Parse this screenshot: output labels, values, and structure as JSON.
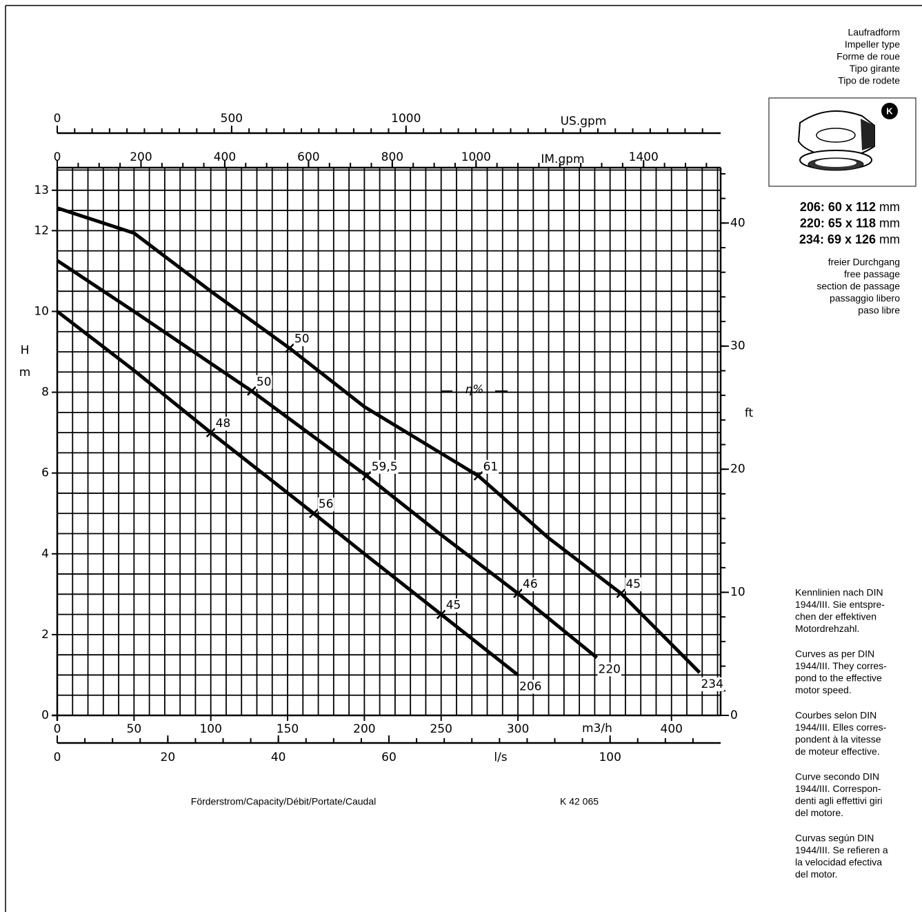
{
  "header": {
    "impeller_type": [
      "Laufradform",
      "Impeller type",
      "Forme de roue",
      "Tipo girante",
      "Tipo de rodete"
    ],
    "impeller_badge": "K",
    "dimensions": [
      {
        "label": "206: 60 x 112",
        "unit": "mm"
      },
      {
        "label": "220: 65 x 118",
        "unit": "mm"
      },
      {
        "label": "234: 69 x 126",
        "unit": "mm"
      }
    ],
    "free_passage": [
      "freier Durchgang",
      "free passage",
      "section de passage",
      "passaggio libero",
      "paso libre"
    ]
  },
  "notes": [
    [
      "Kennlinien nach DIN",
      "1944/III. Sie entspre-",
      "chen der effektiven",
      "Motordrehzahl."
    ],
    [
      "Curves as per DIN",
      "1944/III. They corres-",
      "pond to the effective",
      "motor speed."
    ],
    [
      "Courbes selon DIN",
      "1944/III. Elles corres-",
      "pondent à la vitesse",
      "de moteur effective."
    ],
    [
      "Curve secondo DIN",
      "1944/III. Correspon-",
      "denti agli effettivi giri",
      "del motore."
    ],
    [
      "Curvas según DIN",
      "1944/III. Se refieren a",
      "la velocidad efectiva",
      "del motor."
    ]
  ],
  "footer": {
    "caption": "Förderstrom/Capacity/Débit/Portate/Caudal",
    "code": "K 42 065"
  },
  "chart_data": {
    "type": "line",
    "ylabel": "H",
    "ylabel_unit": "m",
    "xlabel": "m3/h",
    "annotation": "η%",
    "xlim": [
      0,
      432
    ],
    "xticks": [
      0,
      50,
      100,
      150,
      200,
      250,
      300,
      400
    ],
    "ylim": [
      0,
      13.56
    ],
    "yticks": [
      0,
      2,
      4,
      6,
      8,
      10,
      12,
      13
    ],
    "xgrid": [
      0,
      10,
      20,
      30,
      40,
      50,
      60,
      70,
      80,
      90,
      100,
      110,
      120,
      130,
      140,
      150,
      160,
      170,
      180,
      190,
      200,
      210,
      220,
      230,
      240,
      250,
      260,
      270,
      280,
      290,
      300,
      310,
      320,
      330,
      340,
      350,
      360,
      370,
      380,
      390,
      400,
      410,
      420,
      430
    ],
    "ygrid": [
      0,
      0.5,
      1,
      1.5,
      2,
      2.5,
      3,
      3.5,
      4,
      4.5,
      5,
      5.5,
      6,
      6.5,
      7,
      7.5,
      8,
      8.5,
      9,
      9.5,
      10,
      10.5,
      11,
      11.5,
      12,
      12.5,
      13,
      13.5
    ],
    "y2label": "ft",
    "y2lim": [
      0,
      44.5
    ],
    "y2ticks": [
      0,
      10,
      20,
      30,
      40
    ],
    "y2minor_ticks": [
      0,
      2,
      4,
      6,
      8,
      10,
      12,
      14,
      16,
      18,
      20,
      22,
      24,
      26,
      28,
      30,
      32,
      34,
      36,
      38,
      40,
      42,
      44
    ],
    "x2": {
      "label": "US.gpm",
      "lim": [
        0,
        1902
      ],
      "ticks": [
        0,
        500,
        1000
      ],
      "minor_ticks": [
        0,
        50,
        100,
        150,
        200,
        250,
        300,
        350,
        400,
        450,
        500,
        550,
        600,
        650,
        700,
        750,
        800,
        850,
        900,
        950,
        1000,
        1050,
        1100,
        1150,
        1200,
        1250,
        1300,
        1350,
        1400,
        1450,
        1500,
        1550,
        1600,
        1650,
        1700,
        1750,
        1800,
        1850
      ]
    },
    "x3": {
      "label": "IM.gpm",
      "lim": [
        0,
        1584
      ],
      "ticks": [
        0,
        200,
        400,
        600,
        800,
        1000,
        1400
      ],
      "minor_ticks": [
        0,
        50,
        100,
        150,
        200,
        250,
        300,
        350,
        400,
        450,
        500,
        550,
        600,
        650,
        700,
        750,
        800,
        850,
        900,
        950,
        1000,
        1050,
        1100,
        1150,
        1200,
        1250,
        1300,
        1350,
        1400,
        1450,
        1500,
        1550
      ]
    },
    "x4": {
      "label": "l/s",
      "lim": [
        0,
        120
      ],
      "ticks": [
        0,
        20,
        40,
        60,
        100
      ],
      "minor_ticks": [
        0,
        5,
        10,
        15,
        20,
        25,
        30,
        35,
        40,
        45,
        50,
        55,
        60,
        65,
        70,
        75,
        80,
        85,
        90,
        95,
        100,
        105,
        110,
        115
      ]
    },
    "series": [
      {
        "name": "206",
        "color": "#000000",
        "x": [
          0,
          50,
          100,
          167,
          200,
          250,
          300
        ],
        "values": [
          10,
          8.54,
          7,
          5,
          4.0,
          2.5,
          1.0
        ],
        "efficiency": {
          "x": [
            100,
            167,
            250
          ],
          "y": [
            7,
            5,
            2.5
          ],
          "values": [
            48,
            56,
            45
          ]
        }
      },
      {
        "name": "220",
        "color": "#000000",
        "x": [
          0,
          50,
          126.6,
          201.5,
          250,
          300,
          351.4
        ],
        "values": [
          11.26,
          10.0,
          8.03,
          5.93,
          4.47,
          3.02,
          1.43
        ],
        "efficiency": {
          "x": [
            126.6,
            201.5,
            300
          ],
          "y": [
            8.03,
            5.93,
            3.02
          ],
          "values": [
            50,
            59.5,
            46
          ],
          "value_labels": [
            "50",
            "59,5",
            "46"
          ]
        }
      },
      {
        "name": "234",
        "color": "#000000",
        "x": [
          0,
          50,
          100,
          151.3,
          200,
          274.2,
          320,
          367.1,
          418.3
        ],
        "values": [
          12.56,
          11.94,
          10.5,
          9.09,
          7.64,
          5.93,
          4.39,
          3.02,
          1.06
        ],
        "efficiency": {
          "x": [
            151.3,
            274.2,
            367.1
          ],
          "y": [
            9.09,
            5.93,
            3.02
          ],
          "values": [
            50,
            61,
            45
          ]
        }
      }
    ]
  }
}
